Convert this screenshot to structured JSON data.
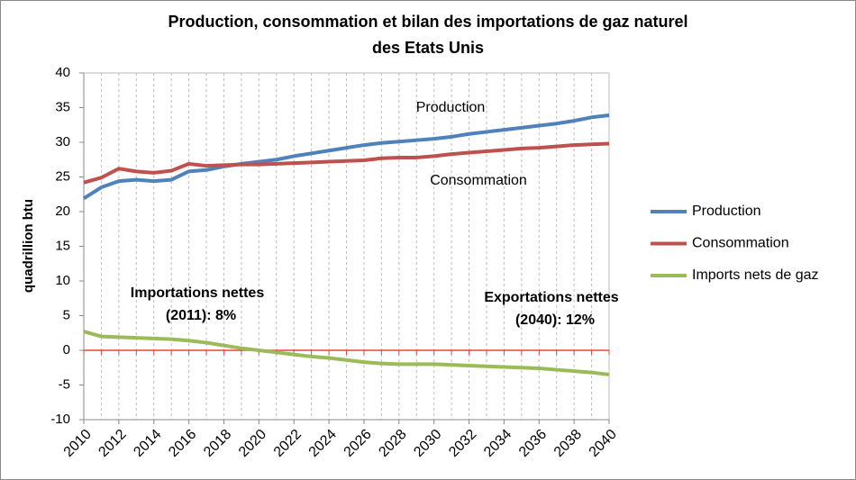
{
  "chart_data": {
    "type": "line",
    "title": [
      "Production, consommation et bilan des importations de gaz naturel",
      "des Etats Unis"
    ],
    "y_label": "quadrillion btu",
    "x": [
      2010,
      2011,
      2012,
      2013,
      2014,
      2015,
      2016,
      2017,
      2018,
      2019,
      2020,
      2021,
      2022,
      2023,
      2024,
      2025,
      2026,
      2027,
      2028,
      2029,
      2030,
      2031,
      2032,
      2033,
      2034,
      2035,
      2036,
      2037,
      2038,
      2039,
      2040
    ],
    "series": [
      {
        "name": "Production",
        "color": "#4f81bd",
        "values": [
          21.9,
          23.5,
          24.4,
          24.6,
          24.4,
          24.6,
          25.8,
          26.0,
          26.5,
          26.9,
          27.2,
          27.5,
          28.0,
          28.4,
          28.8,
          29.2,
          29.6,
          29.9,
          30.1,
          30.3,
          30.5,
          30.8,
          31.2,
          31.5,
          31.8,
          32.1,
          32.4,
          32.7,
          33.1,
          33.6,
          33.9
        ]
      },
      {
        "name": "Consommation",
        "color": "#c0504d",
        "values": [
          24.2,
          24.9,
          26.2,
          25.8,
          25.6,
          25.9,
          26.9,
          26.6,
          26.7,
          26.8,
          26.8,
          26.9,
          27.0,
          27.1,
          27.2,
          27.3,
          27.4,
          27.7,
          27.8,
          27.8,
          28.0,
          28.3,
          28.5,
          28.7,
          28.9,
          29.1,
          29.2,
          29.4,
          29.6,
          29.7,
          29.8
        ]
      },
      {
        "name": "Imports nets de gaz",
        "color": "#9bbb59",
        "values": [
          2.7,
          2.0,
          1.9,
          1.8,
          1.7,
          1.6,
          1.4,
          1.1,
          0.7,
          0.3,
          0.0,
          -0.3,
          -0.6,
          -0.9,
          -1.1,
          -1.4,
          -1.7,
          -1.9,
          -2.0,
          -2.0,
          -2.0,
          -2.1,
          -2.2,
          -2.3,
          -2.4,
          -2.5,
          -2.6,
          -2.8,
          -3.0,
          -3.2,
          -3.5
        ]
      }
    ],
    "xlim": [
      2010,
      2040
    ],
    "xticks": [
      2010,
      2012,
      2014,
      2016,
      2018,
      2020,
      2022,
      2024,
      2026,
      2028,
      2030,
      2032,
      2034,
      2036,
      2038,
      2040
    ],
    "ylim": [
      -10,
      40
    ],
    "yticks": [
      -10,
      -5,
      0,
      5,
      10,
      15,
      20,
      25,
      30,
      35,
      40
    ],
    "grid": "x",
    "legend": "right",
    "annotations": [
      {
        "text": [
          "Production"
        ],
        "color": "#000000"
      },
      {
        "text": [
          "Consommation"
        ],
        "color": "#000000"
      },
      {
        "text": [
          "Importations nettes",
          "(2011): 8%"
        ],
        "color": "#f79646"
      },
      {
        "text": [
          "Exportations nettes",
          "(2040): 12%"
        ],
        "color": "#8064a2"
      }
    ]
  }
}
